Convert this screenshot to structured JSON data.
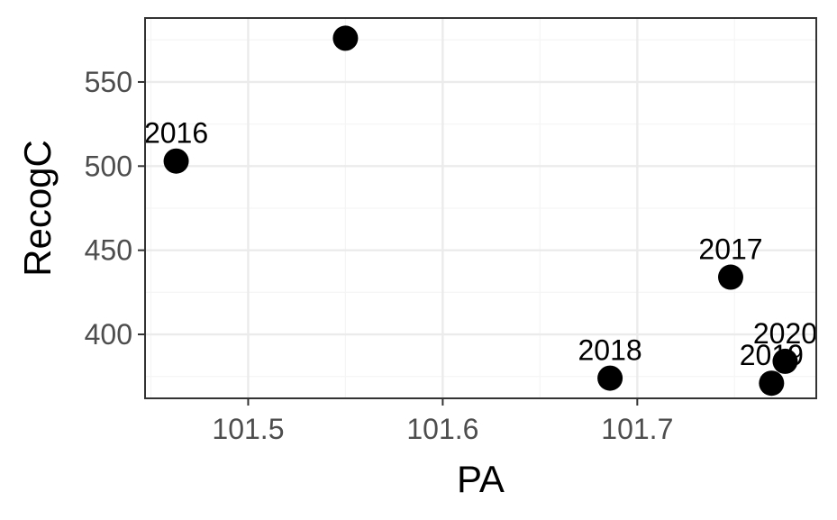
{
  "chart_data": {
    "type": "scatter",
    "xlabel": "PA",
    "ylabel": "RecogC",
    "xlim": [
      101.447,
      101.792
    ],
    "ylim": [
      362,
      588
    ],
    "xticks": [
      101.5,
      101.6,
      101.7
    ],
    "yticks": [
      400,
      450,
      500,
      550
    ],
    "x_tick_labels": [
      "101.5",
      "101.6",
      "101.7"
    ],
    "y_tick_labels": [
      "400",
      "450",
      "500",
      "550"
    ],
    "grid": true,
    "points": [
      {
        "label": "2016",
        "x": 101.463,
        "y": 503
      },
      {
        "label": "",
        "x": 101.55,
        "y": 576
      },
      {
        "label": "2017",
        "x": 101.748,
        "y": 434
      },
      {
        "label": "2018",
        "x": 101.686,
        "y": 374
      },
      {
        "label": "2019",
        "x": 101.769,
        "y": 371
      },
      {
        "label": "2020",
        "x": 101.776,
        "y": 384
      }
    ],
    "colors": {
      "point": "#000000",
      "grid_major": "#ebebeb",
      "grid_minor": "#f5f5f5",
      "panel_border": "#333333",
      "tick_text": "#4d4d4d"
    }
  }
}
